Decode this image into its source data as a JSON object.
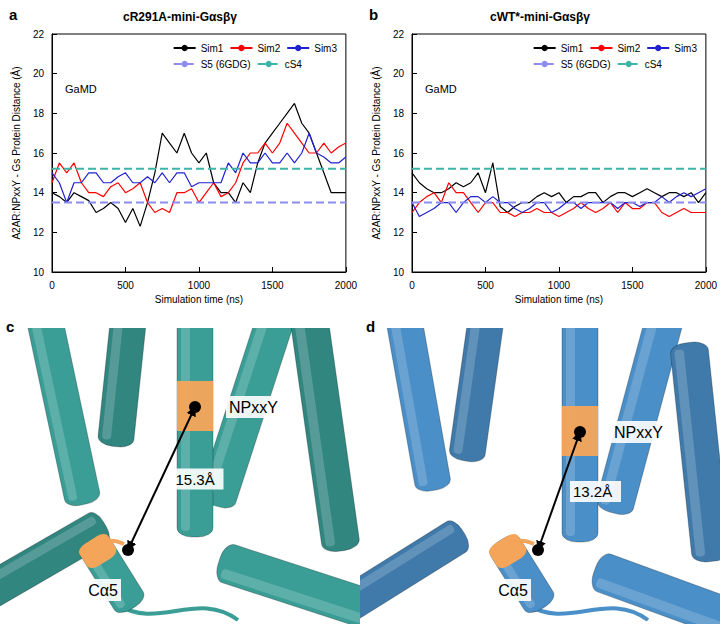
{
  "chart_data": [
    {
      "type": "line",
      "panel": "a",
      "title": "cR291A-mini-Gαsβγ",
      "annotation": "GaMD",
      "x_label": "Simulation time (ns)",
      "y_label": "A2AR:NPxxY - Gs Protein Distance (Å)",
      "xlim": [
        0,
        2000
      ],
      "xticks": [
        0,
        500,
        1000,
        1500,
        2000
      ],
      "ylim": [
        10,
        22
      ],
      "yticks": [
        10,
        12,
        14,
        16,
        18,
        20,
        22
      ],
      "grid": false,
      "legend": "upper right",
      "x": [
        0,
        50,
        100,
        150,
        200,
        250,
        300,
        350,
        400,
        450,
        500,
        550,
        600,
        650,
        700,
        750,
        800,
        850,
        900,
        950,
        1000,
        1050,
        1100,
        1150,
        1200,
        1250,
        1300,
        1350,
        1400,
        1450,
        1500,
        1550,
        1600,
        1650,
        1700,
        1750,
        1800,
        1850,
        1900,
        1950,
        2000
      ],
      "series": [
        {
          "name": "Sim1",
          "color": "#000000",
          "line_style": "solid",
          "values": [
            14,
            13.8,
            13.5,
            14,
            13.8,
            13.6,
            13,
            13.2,
            13.5,
            13.2,
            12.5,
            13.2,
            12.3,
            13.5,
            15,
            17,
            16.5,
            16,
            17,
            16,
            15.5,
            16,
            14.5,
            14,
            14,
            13.5,
            14.5,
            14,
            15.5,
            16.5,
            17,
            17.5,
            18,
            18.5,
            17.5,
            17,
            16,
            15,
            14,
            14,
            14
          ]
        },
        {
          "name": "Sim2",
          "color": "#ff0000",
          "line_style": "solid",
          "values": [
            14.5,
            15.5,
            15,
            15.5,
            14.5,
            14,
            14,
            13.8,
            14.3,
            14.5,
            14,
            14.2,
            14.5,
            13.5,
            13,
            13.2,
            13,
            14,
            14,
            14.2,
            13.5,
            14,
            14.5,
            13.8,
            14,
            14.5,
            15.5,
            16,
            16,
            16.5,
            16,
            16.5,
            17.5,
            17,
            16.5,
            16,
            16,
            16.5,
            16,
            16.3,
            16.5
          ]
        },
        {
          "name": "Sim3",
          "color": "#2020d0",
          "line_style": "solid",
          "values": [
            15,
            14.5,
            13.5,
            14.5,
            14.5,
            15,
            15,
            14.5,
            14.5,
            14.8,
            15,
            14.5,
            14.5,
            14.8,
            14.5,
            15,
            14.5,
            15,
            15,
            14.3,
            14.5,
            14.5,
            14.5,
            14.5,
            15.5,
            15,
            16,
            15.5,
            15.5,
            16,
            15.5,
            15.5,
            16,
            15.5,
            16,
            17,
            16,
            15.8,
            15.5,
            15.5,
            15.8
          ]
        }
      ],
      "reference_lines": [
        {
          "name": "S5 (6GDG)",
          "value": 13.5,
          "color": "#8c8cf0",
          "line_style": "dashed"
        },
        {
          "name": "cS4",
          "value": 15.2,
          "color": "#3bb5a8",
          "line_style": "dashed"
        }
      ]
    },
    {
      "type": "line",
      "panel": "b",
      "title": "cWT*-mini-Gαsβγ",
      "annotation": "GaMD",
      "x_label": "Simulation time (ns)",
      "y_label": "A2AR:NPxxY - Gs Protein Distance (Å)",
      "xlim": [
        0,
        2000
      ],
      "xticks": [
        0,
        500,
        1000,
        1500,
        2000
      ],
      "ylim": [
        10,
        22
      ],
      "yticks": [
        10,
        12,
        14,
        16,
        18,
        20,
        22
      ],
      "grid": false,
      "legend": "upper right",
      "x": [
        0,
        50,
        100,
        150,
        200,
        250,
        300,
        350,
        400,
        450,
        500,
        550,
        600,
        650,
        700,
        750,
        800,
        850,
        900,
        950,
        1000,
        1050,
        1100,
        1150,
        1200,
        1250,
        1300,
        1350,
        1400,
        1450,
        1500,
        1550,
        1600,
        1650,
        1700,
        1750,
        1800,
        1850,
        1900,
        1950,
        2000
      ],
      "series": [
        {
          "name": "Sim1",
          "color": "#000000",
          "line_style": "solid",
          "values": [
            15,
            14.5,
            14.2,
            14,
            14,
            14.2,
            14.5,
            14.3,
            14.5,
            15,
            14,
            15.5,
            13.3,
            13,
            13.3,
            13.5,
            13.5,
            13.8,
            14,
            13.8,
            14,
            13.5,
            13.8,
            13.8,
            14,
            14,
            13.5,
            13.8,
            14,
            14,
            13.8,
            14,
            14.2,
            14,
            13.8,
            14,
            14,
            13.8,
            14,
            13.5,
            14
          ]
        },
        {
          "name": "Sim2",
          "color": "#ff0000",
          "line_style": "solid",
          "values": [
            13,
            13.5,
            13.8,
            14,
            13.5,
            14.5,
            14,
            14,
            13.5,
            13,
            13.5,
            13.5,
            13,
            13,
            12.8,
            13,
            13,
            13.2,
            13,
            13,
            12.8,
            13,
            13.2,
            13.5,
            13.2,
            13,
            13.2,
            13.5,
            13,
            13.5,
            13.2,
            13.2,
            13.5,
            13.5,
            13,
            12.8,
            13,
            13.2,
            13,
            13,
            13
          ]
        },
        {
          "name": "Sim3",
          "color": "#2020d0",
          "line_style": "solid",
          "values": [
            13.5,
            12.8,
            13,
            13.2,
            13.5,
            13.5,
            13,
            13.5,
            13.8,
            13.8,
            13.5,
            13.8,
            13.5,
            13.5,
            13.2,
            13,
            13.2,
            13.5,
            13.5,
            13,
            13.2,
            13.5,
            13.5,
            13.2,
            13.5,
            13.5,
            13.5,
            13.5,
            13.2,
            13.5,
            13.5,
            13.3,
            13.5,
            13.5,
            13.8,
            13.5,
            13.8,
            14,
            13.8,
            14,
            14.2
          ]
        }
      ],
      "reference_lines": [
        {
          "name": "S5 (6GDG)",
          "value": 13.5,
          "color": "#8c8cf0",
          "line_style": "dashed"
        },
        {
          "name": "cS4",
          "value": 15.2,
          "color": "#3bb5a8",
          "line_style": "dashed"
        }
      ]
    }
  ],
  "diagrams": [
    {
      "panel": "c",
      "color": "#3a9e96",
      "site_labels": [
        "NPxxY",
        "Cα5"
      ],
      "distance_label": "15.3Å"
    },
    {
      "panel": "d",
      "color": "#4a8fc8",
      "site_labels": [
        "NPxxY",
        "Cα5"
      ],
      "distance_label": "13.2Å"
    }
  ]
}
